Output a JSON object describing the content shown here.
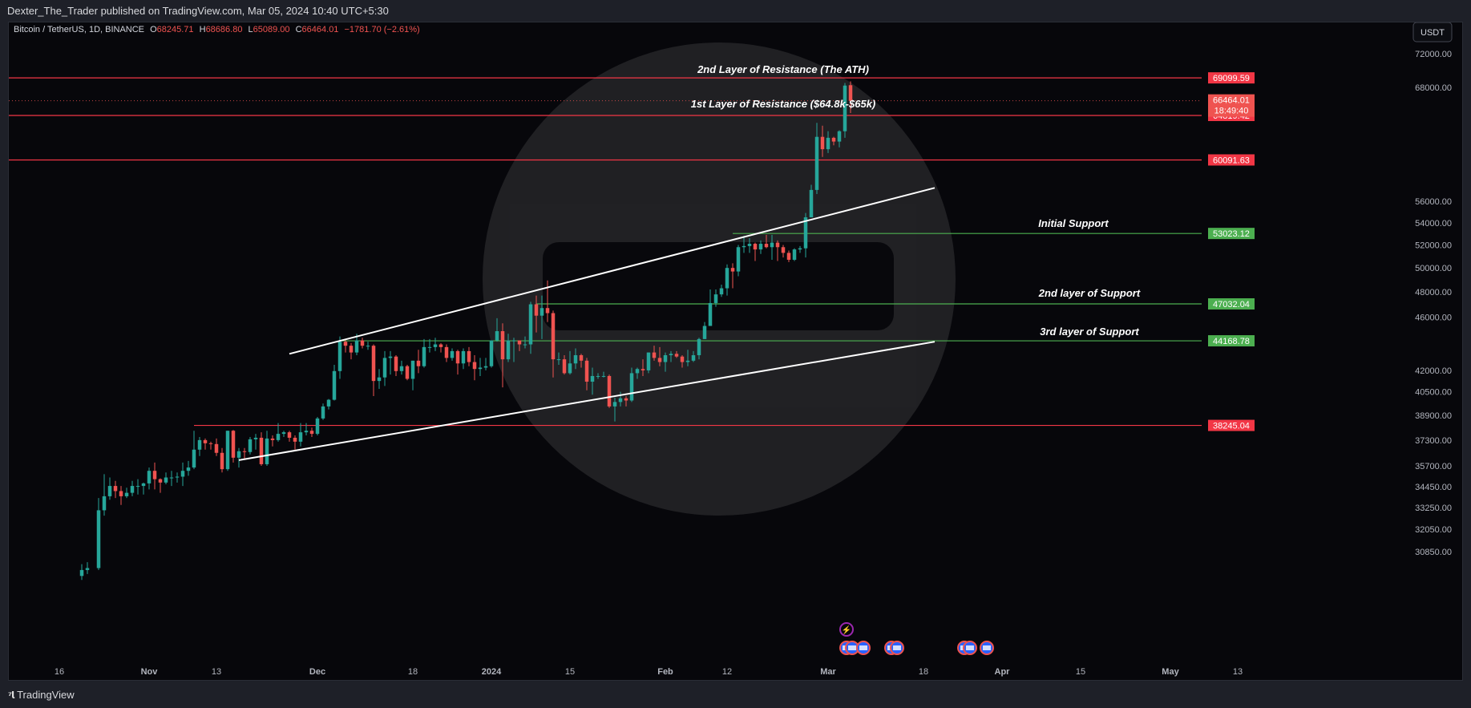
{
  "header": {
    "published": "Dexter_The_Trader published on TradingView.com, Mar 05, 2024 10:40 UTC+5:30"
  },
  "legend": {
    "symbol": "Bitcoin / TetherUS, 1D, BINANCE",
    "o_label": "O",
    "o_value": "68245.71",
    "h_label": "H",
    "h_value": "68686.80",
    "l_label": "L",
    "l_value": "65089.00",
    "c_label": "C",
    "c_value": "66464.01",
    "change": "−1781.70 (−2.61%)"
  },
  "currency_button": "USDT",
  "footer": {
    "brand": "TradingView"
  },
  "colors": {
    "up": "#26a69a",
    "down": "#ef5350",
    "resistance": "#f23645",
    "support": "#4caf50",
    "trendline": "#ffffff",
    "background": "#07070b"
  },
  "chart_data": {
    "type": "candlestick",
    "title": "",
    "y_scale": "log",
    "ylim": [
      29500,
      76000
    ],
    "price_axis": [
      "72000.00",
      "68000.00",
      "56000.00",
      "54000.00",
      "52000.00",
      "50000.00",
      "48000.00",
      "46000.00",
      "42000.00",
      "40500.00",
      "38900.00",
      "37300.00",
      "35700.00",
      "34450.00",
      "33250.00",
      "32050.00",
      "30850.00"
    ],
    "time_axis": [
      {
        "label": "16",
        "date": "2023-10-16"
      },
      {
        "label": "Nov",
        "date": "2023-11-01"
      },
      {
        "label": "13",
        "date": "2023-11-13"
      },
      {
        "label": "Dec",
        "date": "2023-12-01"
      },
      {
        "label": "18",
        "date": "2023-12-18"
      },
      {
        "label": "2024",
        "date": "2024-01-01"
      },
      {
        "label": "15",
        "date": "2024-01-15"
      },
      {
        "label": "Feb",
        "date": "2024-02-01"
      },
      {
        "label": "12",
        "date": "2024-02-12"
      },
      {
        "label": "Mar",
        "date": "2024-03-01"
      },
      {
        "label": "18",
        "date": "2024-03-18"
      },
      {
        "label": "Apr",
        "date": "2024-04-01"
      },
      {
        "label": "15",
        "date": "2024-04-15"
      },
      {
        "label": "May",
        "date": "2024-05-01"
      },
      {
        "label": "13",
        "date": "2024-05-13"
      }
    ],
    "levels": [
      {
        "price": "69099.59",
        "value": 69099.59,
        "kind": "resistance",
        "note": "2nd Layer of Resistance (The ATH)",
        "from": "2023-10-01"
      },
      {
        "price": "64819.42",
        "value": 64819.42,
        "kind": "resistance",
        "note": "1st Layer of Resistance ($64.8k-$65k)",
        "from": "2023-10-01"
      },
      {
        "price": "60091.63",
        "value": 60091.63,
        "kind": "resistance",
        "note": "",
        "from": "2023-10-01"
      },
      {
        "price": "53023.12",
        "value": 53023.12,
        "kind": "support",
        "note": "Initial Support",
        "from": "2024-02-13"
      },
      {
        "price": "47032.04",
        "value": 47032.04,
        "kind": "support",
        "note": "2nd layer of Support",
        "from": "2024-01-09"
      },
      {
        "price": "44168.78",
        "value": 44168.78,
        "kind": "support",
        "note": "3rd layer of Support",
        "from": "2023-12-05"
      },
      {
        "price": "38245.04",
        "value": 38245.04,
        "kind": "resistance",
        "note": "",
        "from": "2023-11-09"
      }
    ],
    "last_price": {
      "price": "66464.01",
      "countdown": "18:49:40",
      "value": 66464.01
    },
    "trendlines": [
      {
        "from": {
          "date": "2023-11-26",
          "price": 43200
        },
        "to": {
          "date": "2024-03-20",
          "price": 57300
        }
      },
      {
        "from": {
          "date": "2023-11-17",
          "price": 36050
        },
        "to": {
          "date": "2024-03-20",
          "price": 44100
        }
      }
    ],
    "candles": [
      [
        "2023-10-20",
        29600,
        30200,
        29400,
        29900
      ],
      [
        "2023-10-21",
        29900,
        30300,
        29700,
        30000
      ],
      [
        "2023-10-23",
        30000,
        33800,
        29900,
        33100
      ],
      [
        "2023-10-24",
        33100,
        35200,
        32800,
        33900
      ],
      [
        "2023-10-25",
        33900,
        35000,
        33700,
        34500
      ],
      [
        "2023-10-26",
        34500,
        34800,
        33800,
        34200
      ],
      [
        "2023-10-27",
        34200,
        34500,
        33400,
        33900
      ],
      [
        "2023-10-28",
        33900,
        34400,
        33800,
        34100
      ],
      [
        "2023-10-29",
        34100,
        34800,
        33900,
        34500
      ],
      [
        "2023-10-30",
        34500,
        34900,
        34000,
        34500
      ],
      [
        "2023-10-31",
        34500,
        34700,
        34000,
        34650
      ],
      [
        "2023-11-01",
        34650,
        35600,
        34300,
        35400
      ],
      [
        "2023-11-02",
        35400,
        35900,
        34300,
        34900
      ],
      [
        "2023-11-03",
        34900,
        34950,
        34100,
        34700
      ],
      [
        "2023-11-04",
        34700,
        35300,
        34600,
        35000
      ],
      [
        "2023-11-05",
        35000,
        35400,
        34500,
        35000
      ],
      [
        "2023-11-06",
        35000,
        35300,
        34700,
        35050
      ],
      [
        "2023-11-07",
        35050,
        35900,
        34500,
        35400
      ],
      [
        "2023-11-08",
        35400,
        36000,
        35100,
        35600
      ],
      [
        "2023-11-09",
        35600,
        37900,
        35500,
        36700
      ],
      [
        "2023-11-10",
        36700,
        37500,
        36300,
        37300
      ],
      [
        "2023-11-11",
        37300,
        37400,
        36700,
        37100
      ],
      [
        "2023-11-12",
        37100,
        37200,
        36700,
        37050
      ],
      [
        "2023-11-13",
        37050,
        37400,
        36300,
        36500
      ],
      [
        "2023-11-14",
        36500,
        36800,
        35300,
        35500
      ],
      [
        "2023-11-15",
        35500,
        37900,
        35400,
        37900
      ],
      [
        "2023-11-16",
        37900,
        37950,
        35900,
        36200
      ],
      [
        "2023-11-17",
        36200,
        36800,
        35600,
        36600
      ],
      [
        "2023-11-18",
        36600,
        36800,
        36100,
        36550
      ],
      [
        "2023-11-19",
        36550,
        37500,
        36400,
        37350
      ],
      [
        "2023-11-20",
        37350,
        37700,
        36700,
        37450
      ],
      [
        "2023-11-21",
        37450,
        37800,
        35700,
        35800
      ],
      [
        "2023-11-22",
        35800,
        37900,
        35700,
        37400
      ],
      [
        "2023-11-23",
        37400,
        37600,
        36900,
        37300
      ],
      [
        "2023-11-24",
        37300,
        38400,
        37200,
        37700
      ],
      [
        "2023-11-25",
        37700,
        37900,
        37500,
        37800
      ],
      [
        "2023-11-26",
        37800,
        37900,
        37200,
        37450
      ],
      [
        "2023-11-27",
        37450,
        37600,
        36700,
        37200
      ],
      [
        "2023-11-28",
        37200,
        38400,
        36900,
        37800
      ],
      [
        "2023-11-29",
        37800,
        38400,
        37600,
        37900
      ],
      [
        "2023-11-30",
        37900,
        38100,
        37500,
        37700
      ],
      [
        "2023-12-01",
        37700,
        38800,
        37600,
        38700
      ],
      [
        "2023-12-02",
        38700,
        39700,
        38600,
        39500
      ],
      [
        "2023-12-03",
        39500,
        40000,
        39300,
        39950
      ],
      [
        "2023-12-04",
        39950,
        42400,
        39900,
        41950
      ],
      [
        "2023-12-05",
        41950,
        44500,
        41400,
        44100
      ],
      [
        "2023-12-06",
        44100,
        44300,
        43300,
        43800
      ],
      [
        "2023-12-07",
        43800,
        44000,
        42800,
        43300
      ],
      [
        "2023-12-08",
        43300,
        44700,
        43100,
        44200
      ],
      [
        "2023-12-09",
        44200,
        44400,
        43600,
        43800
      ],
      [
        "2023-12-10",
        43800,
        44100,
        43500,
        43800
      ],
      [
        "2023-12-11",
        43800,
        43900,
        40200,
        41250
      ],
      [
        "2023-12-12",
        41250,
        42100,
        40700,
        41500
      ],
      [
        "2023-12-13",
        41500,
        43400,
        40900,
        42900
      ],
      [
        "2023-12-14",
        42900,
        43400,
        41700,
        43000
      ],
      [
        "2023-12-15",
        43000,
        43100,
        41600,
        41950
      ],
      [
        "2023-12-16",
        41950,
        42700,
        41700,
        42300
      ],
      [
        "2023-12-17",
        42300,
        42400,
        41300,
        41400
      ],
      [
        "2023-12-18",
        41400,
        42700,
        40600,
        42700
      ],
      [
        "2023-12-19",
        42700,
        43500,
        41800,
        42300
      ],
      [
        "2023-12-20",
        42300,
        44300,
        42200,
        43700
      ],
      [
        "2023-12-21",
        43700,
        44300,
        43300,
        43700
      ],
      [
        "2023-12-22",
        43700,
        44400,
        43400,
        43900
      ],
      [
        "2023-12-23",
        43900,
        44000,
        43300,
        43700
      ],
      [
        "2023-12-24",
        43700,
        43900,
        42600,
        42900
      ],
      [
        "2023-12-25",
        42900,
        43600,
        42700,
        43400
      ],
      [
        "2023-12-26",
        43400,
        43500,
        41700,
        42500
      ],
      [
        "2023-12-27",
        42500,
        43600,
        42100,
        43400
      ],
      [
        "2023-12-28",
        43400,
        43700,
        42300,
        42600
      ],
      [
        "2023-12-29",
        42600,
        43100,
        41300,
        42100
      ],
      [
        "2023-12-30",
        42100,
        42900,
        41600,
        42200
      ],
      [
        "2023-12-31",
        42200,
        42900,
        42000,
        42300
      ],
      [
        "2024-01-01",
        42300,
        44200,
        42200,
        44200
      ],
      [
        "2024-01-02",
        44200,
        45900,
        44100,
        44900
      ],
      [
        "2024-01-03",
        44900,
        45500,
        40800,
        42800
      ],
      [
        "2024-01-04",
        42800,
        44700,
        42600,
        44200
      ],
      [
        "2024-01-05",
        44200,
        44400,
        42600,
        44200
      ],
      [
        "2024-01-06",
        44200,
        44200,
        43400,
        43900
      ],
      [
        "2024-01-07",
        43900,
        44500,
        43600,
        43900
      ],
      [
        "2024-01-08",
        43900,
        47200,
        43200,
        47000
      ],
      [
        "2024-01-09",
        47000,
        47700,
        44800,
        46100
      ],
      [
        "2024-01-10",
        46100,
        47700,
        44300,
        46700
      ],
      [
        "2024-01-11",
        46700,
        48950,
        45600,
        46300
      ],
      [
        "2024-01-12",
        46300,
        46500,
        41500,
        42800
      ],
      [
        "2024-01-13",
        42800,
        43300,
        42400,
        42800
      ],
      [
        "2024-01-14",
        42800,
        43100,
        41700,
        41800
      ],
      [
        "2024-01-15",
        41800,
        43400,
        41700,
        42500
      ],
      [
        "2024-01-16",
        42500,
        43600,
        42100,
        43100
      ],
      [
        "2024-01-17",
        43100,
        43200,
        42200,
        42700
      ],
      [
        "2024-01-18",
        42700,
        42900,
        40600,
        41200
      ],
      [
        "2024-01-19",
        41200,
        42200,
        40300,
        41600
      ],
      [
        "2024-01-20",
        41600,
        41800,
        41400,
        41600
      ],
      [
        "2024-01-21",
        41600,
        41900,
        41500,
        41600
      ],
      [
        "2024-01-22",
        41600,
        41700,
        39400,
        39500
      ],
      [
        "2024-01-23",
        39500,
        40100,
        38500,
        39800
      ],
      [
        "2024-01-24",
        39800,
        40500,
        39500,
        40050
      ],
      [
        "2024-01-25",
        40050,
        40200,
        39500,
        39900
      ],
      [
        "2024-01-26",
        39900,
        42200,
        39800,
        41800
      ],
      [
        "2024-01-27",
        41800,
        42200,
        41400,
        42100
      ],
      [
        "2024-01-28",
        42100,
        42800,
        41600,
        42000
      ],
      [
        "2024-01-29",
        42000,
        43300,
        41800,
        43300
      ],
      [
        "2024-01-30",
        43300,
        43800,
        42700,
        42900
      ],
      [
        "2024-01-31",
        42900,
        43700,
        42300,
        42600
      ],
      [
        "2024-02-01",
        42600,
        43300,
        41900,
        43100
      ],
      [
        "2024-02-02",
        43100,
        43400,
        42600,
        43200
      ],
      [
        "2024-02-03",
        43200,
        43400,
        42900,
        43000
      ],
      [
        "2024-02-04",
        43000,
        43100,
        42200,
        42600
      ],
      [
        "2024-02-05",
        42600,
        43500,
        42300,
        42700
      ],
      [
        "2024-02-06",
        42700,
        43400,
        42600,
        43100
      ],
      [
        "2024-02-07",
        43100,
        44400,
        42800,
        44300
      ],
      [
        "2024-02-08",
        44300,
        45600,
        44300,
        45300
      ],
      [
        "2024-02-09",
        45300,
        48200,
        45300,
        47100
      ],
      [
        "2024-02-10",
        47100,
        48200,
        46800,
        47800
      ],
      [
        "2024-02-11",
        47800,
        48600,
        47600,
        48300
      ],
      [
        "2024-02-12",
        48300,
        50300,
        47700,
        50000
      ],
      [
        "2024-02-13",
        50000,
        50400,
        48300,
        49700
      ],
      [
        "2024-02-14",
        49700,
        52000,
        49300,
        51800
      ],
      [
        "2024-02-15",
        51800,
        52800,
        51300,
        51900
      ],
      [
        "2024-02-16",
        51900,
        52600,
        51300,
        52100
      ],
      [
        "2024-02-17",
        52100,
        52200,
        50600,
        51600
      ],
      [
        "2024-02-18",
        51600,
        52400,
        51200,
        52100
      ],
      [
        "2024-02-19",
        52100,
        52900,
        51700,
        51800
      ],
      [
        "2024-02-20",
        51800,
        52900,
        50700,
        52200
      ],
      [
        "2024-02-21",
        52200,
        52400,
        50600,
        51800
      ],
      [
        "2024-02-22",
        51800,
        52000,
        50900,
        51300
      ],
      [
        "2024-02-23",
        51300,
        51500,
        50500,
        50700
      ],
      [
        "2024-02-24",
        50700,
        51700,
        50600,
        51600
      ],
      [
        "2024-02-25",
        51600,
        51900,
        51300,
        51700
      ],
      [
        "2024-02-26",
        51700,
        54900,
        50900,
        54500
      ],
      [
        "2024-02-27",
        54500,
        57600,
        54500,
        57100
      ],
      [
        "2024-02-28",
        57100,
        64000,
        56700,
        62500
      ],
      [
        "2024-02-29",
        62500,
        63700,
        60400,
        61200
      ],
      [
        "2024-03-01",
        61200,
        63100,
        60800,
        62400
      ],
      [
        "2024-03-02",
        62400,
        62500,
        61600,
        62000
      ],
      [
        "2024-03-03",
        62000,
        63200,
        61400,
        63100
      ],
      [
        "2024-03-04",
        63100,
        68500,
        62400,
        68200
      ],
      [
        "2024-03-05",
        68245.71,
        68686.8,
        65089.0,
        66464.01
      ]
    ]
  }
}
